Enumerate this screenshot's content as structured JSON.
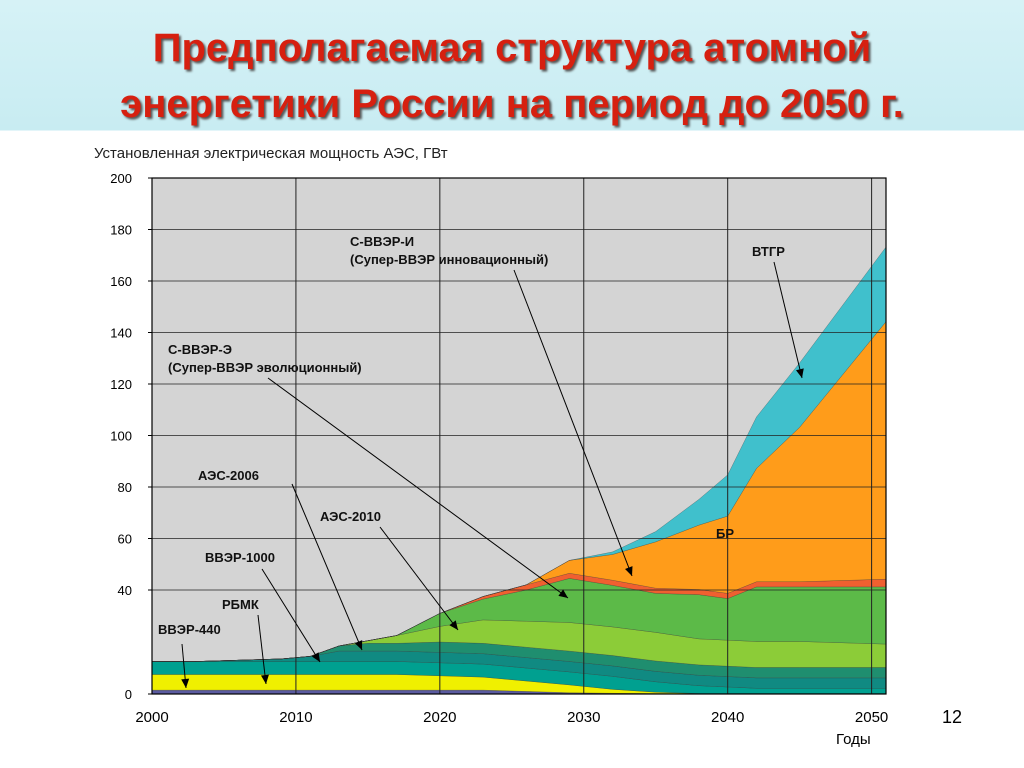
{
  "title_line1": "Предполагаемая структура атомной",
  "title_line2": "энергетики России на период до 2050 г.",
  "page_number": "12",
  "colors": {
    "grid_bg": "#d4d4d4",
    "title": "#d62010"
  },
  "chart_data": {
    "type": "area",
    "stacked": true,
    "ylabel": "Установленная электрическая мощность АЭС, ГВт",
    "xlabel": "Годы",
    "xlim": [
      2000,
      2051
    ],
    "ylim": [
      0,
      200
    ],
    "x_ticks": [
      "2000",
      "2010",
      "2020",
      "2030",
      "2040",
      "2050"
    ],
    "y_ticks": [
      "0",
      "40",
      "60",
      "80",
      "100",
      "120",
      "140",
      "160",
      "180",
      "200"
    ],
    "x": [
      2000,
      2003,
      2006,
      2009,
      2011,
      2013,
      2015,
      2017,
      2020,
      2023,
      2026,
      2029,
      2032,
      2035,
      2038,
      2040,
      2042,
      2045,
      2051
    ],
    "series": [
      {
        "name": "ВВЭР-440",
        "color": "#5a5aa0",
        "values": [
          1.5,
          1.5,
          1.5,
          1.5,
          1.5,
          1.5,
          1.5,
          1.5,
          1.5,
          1.5,
          1.0,
          0.5,
          0.3,
          0.2,
          0.2,
          0.2,
          0.2,
          0.2,
          0.2
        ]
      },
      {
        "name": "РБМК",
        "color": "#f0f000",
        "values": [
          6,
          6,
          6,
          6,
          6,
          6,
          6,
          6,
          5.5,
          5,
          4,
          3,
          1.5,
          0.5,
          0,
          0,
          0,
          0,
          0
        ]
      },
      {
        "name": "ВВЭР-1000",
        "color": "#00a090",
        "values": [
          5,
          5,
          5,
          5,
          5,
          5,
          5,
          5,
          5,
          5,
          5,
          5,
          5,
          4,
          3,
          2.5,
          2,
          2,
          2
        ]
      },
      {
        "name": "АЭС-2006",
        "color": "#108a82",
        "values": [
          0,
          0,
          0.5,
          1,
          2,
          4,
          4,
          4,
          4,
          4,
          4,
          4,
          4,
          4,
          4,
          4,
          4,
          4,
          4
        ]
      },
      {
        "name": "АЭС-2010",
        "color": "#1f8e6f",
        "values": [
          0,
          0,
          0,
          0,
          0,
          2,
          3,
          3,
          4,
          4,
          4,
          4,
          4,
          4,
          4,
          4,
          4,
          4,
          4
        ]
      },
      {
        "name": "С-ВВЭР-Э (Супер-ВВЭР эволюционный)",
        "color": "#8ccc38",
        "values": [
          0,
          0,
          0,
          0,
          0,
          0,
          1,
          3,
          6,
          9,
          10,
          11,
          11,
          11,
          10,
          10,
          10,
          10,
          9
        ]
      },
      {
        "name": "С-ВВЭР-И (Супер-ВВЭР инновационный)",
        "color": "#5cba48",
        "values": [
          0,
          0,
          0,
          0,
          0,
          0,
          0,
          0,
          5,
          8,
          12,
          17,
          16,
          15,
          17,
          16,
          21,
          21,
          22
        ]
      },
      {
        "name": "",
        "color": "#f06030",
        "values": [
          0,
          0,
          0,
          0,
          0,
          0,
          0,
          0,
          0,
          1,
          2,
          2,
          2,
          2,
          2,
          2,
          2,
          2,
          3
        ]
      },
      {
        "name": "БР",
        "color": "#ff9c1a",
        "values": [
          0,
          0,
          0,
          0,
          0,
          0,
          0,
          0,
          0,
          0,
          0,
          5,
          10,
          18,
          25,
          30,
          44,
          60,
          100
        ]
      },
      {
        "name": "ВТГР",
        "color": "#40c0cc",
        "values": [
          0,
          0,
          0,
          0,
          0,
          0,
          0,
          0,
          0,
          0,
          0,
          0,
          1,
          4,
          10,
          16,
          20,
          25,
          29
        ]
      }
    ],
    "annotations": [
      {
        "text": "ВВЭР-440"
      },
      {
        "text": "РБМК"
      },
      {
        "text": "ВВЭР-1000"
      },
      {
        "text": "АЭС-2006"
      },
      {
        "text": "АЭС-2010"
      },
      {
        "text": "С-ВВЭР-Э"
      },
      {
        "text": "(Супер-ВВЭР эволюционный)"
      },
      {
        "text": "С-ВВЭР-И"
      },
      {
        "text": "(Супер-ВВЭР инновационный)"
      },
      {
        "text": "ВТГР"
      },
      {
        "text": "БР"
      }
    ]
  }
}
